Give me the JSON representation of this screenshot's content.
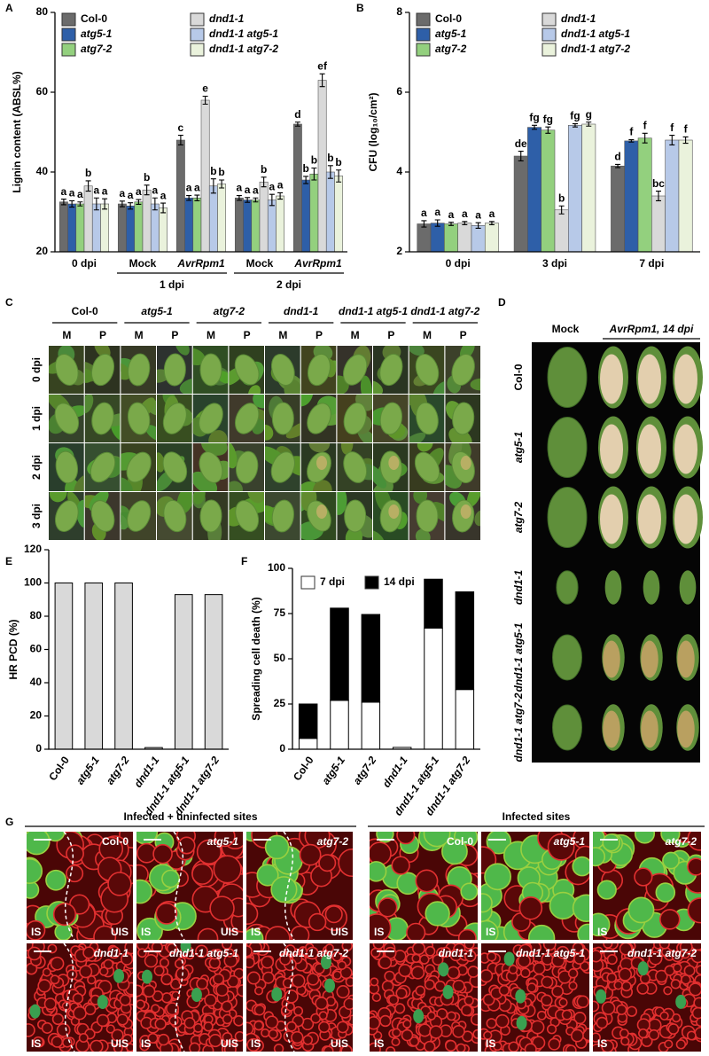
{
  "chart_data": [
    {
      "type": "bar",
      "panel": "A",
      "ylabel": "Lignin content (ABSL%)",
      "categories": [
        "0 dpi",
        "Mock",
        "AvrRpm1",
        "Mock",
        "AvrRpm1"
      ],
      "category_groups": [
        {
          "label": "1 dpi",
          "members": [
            1,
            2
          ]
        },
        {
          "label": "2 dpi",
          "members": [
            3,
            4
          ]
        }
      ],
      "ylim": [
        20,
        80
      ],
      "yticks": [
        20,
        40,
        60,
        80
      ],
      "legend": "top",
      "series": [
        {
          "name": "Col-0",
          "color": "#6b6b6b",
          "values": [
            32.5,
            32,
            48,
            33.5,
            52
          ],
          "errors": [
            0.7,
            0.7,
            1.2,
            0.6,
            0.5
          ],
          "letters": [
            "a",
            "a",
            "c",
            "a",
            "d"
          ]
        },
        {
          "name": "atg5-1",
          "color": "#2e5fa8",
          "values": [
            32,
            31.5,
            33.5,
            33,
            38
          ],
          "errors": [
            0.8,
            0.8,
            0.6,
            0.6,
            0.9
          ],
          "letters": [
            "a",
            "a",
            "a",
            "a",
            "b"
          ]
        },
        {
          "name": "atg7-2",
          "color": "#93d07e",
          "values": [
            32,
            32.5,
            33.5,
            33,
            39.5
          ],
          "errors": [
            0.5,
            0.6,
            0.7,
            0.5,
            1.5
          ],
          "letters": [
            "a",
            "a",
            "a",
            "a",
            "b"
          ]
        },
        {
          "name": "dnd1-1",
          "color": "#d9d9d9",
          "values": [
            36.5,
            35.5,
            58,
            37.5,
            63
          ],
          "errors": [
            1.3,
            1.2,
            1.0,
            1.2,
            1.6
          ],
          "letters": [
            "b",
            "b",
            "e",
            "b",
            "ef"
          ]
        },
        {
          "name": "dnd1-1 atg5-1",
          "color": "#b7c9e8",
          "values": [
            32,
            32,
            36.5,
            33,
            40
          ],
          "errors": [
            1.5,
            1.5,
            1.8,
            1.4,
            1.6
          ],
          "letters": [
            "a",
            "a",
            "b",
            "a",
            "b"
          ]
        },
        {
          "name": "dnd1-1 atg7-2",
          "color": "#eaf2dc",
          "values": [
            32,
            31,
            37,
            34,
            39
          ],
          "errors": [
            1.3,
            1.2,
            1.0,
            0.8,
            1.5
          ],
          "letters": [
            "a",
            "a",
            "b",
            "a",
            "b"
          ]
        }
      ]
    },
    {
      "type": "bar",
      "panel": "B",
      "ylabel": "CFU (log₁₀/cm²)",
      "categories": [
        "0 dpi",
        "3 dpi",
        "7 dpi"
      ],
      "ylim": [
        2,
        8
      ],
      "yticks": [
        2,
        4,
        6,
        8
      ],
      "legend": "top",
      "series": [
        {
          "name": "Col-0",
          "color": "#6b6b6b",
          "values": [
            2.7,
            4.4,
            4.15
          ],
          "errors": [
            0.08,
            0.12,
            0.04
          ],
          "letters": [
            "a",
            "de",
            "d"
          ]
        },
        {
          "name": "atg5-1",
          "color": "#2e5fa8",
          "values": [
            2.72,
            5.12,
            4.78
          ],
          "errors": [
            0.08,
            0.05,
            0.03
          ],
          "letters": [
            "a",
            "fg",
            "f"
          ]
        },
        {
          "name": "atg7-2",
          "color": "#93d07e",
          "values": [
            2.7,
            5.05,
            4.85
          ],
          "errors": [
            0.04,
            0.08,
            0.12
          ],
          "letters": [
            "a",
            "fg",
            "f"
          ]
        },
        {
          "name": "dnd1-1",
          "color": "#d9d9d9",
          "values": [
            2.72,
            3.05,
            3.4
          ],
          "errors": [
            0.04,
            0.1,
            0.12
          ],
          "letters": [
            "a",
            "b",
            "bc"
          ]
        },
        {
          "name": "dnd1-1 atg5-1",
          "color": "#b7c9e8",
          "values": [
            2.66,
            5.17,
            4.8
          ],
          "errors": [
            0.07,
            0.04,
            0.12
          ],
          "letters": [
            "a",
            "fg",
            "f"
          ]
        },
        {
          "name": "dnd1-1 atg7-2",
          "color": "#eaf2dc",
          "values": [
            2.72,
            5.2,
            4.8
          ],
          "errors": [
            0.04,
            0.05,
            0.08
          ],
          "letters": [
            "a",
            "g",
            "f"
          ]
        }
      ]
    },
    {
      "type": "bar",
      "panel": "E",
      "ylabel": "HR PCD (%)",
      "categories": [
        "Col-0",
        "atg5-1",
        "atg7-2",
        "dnd1-1",
        "dnd1-1 atg5-1",
        "dnd1-1 atg7-2"
      ],
      "values": [
        100,
        100,
        100,
        1,
        93,
        93
      ],
      "color": "#d9d9d9",
      "ylim": [
        0,
        120
      ],
      "yticks": [
        0,
        20,
        40,
        60,
        80,
        100,
        120
      ]
    },
    {
      "type": "stacked_bar",
      "panel": "F",
      "ylabel": "Spreading cell death (%)",
      "categories": [
        "Col-0",
        "atg5-1",
        "atg7-2",
        "dnd1-1",
        "dnd1-1 atg5-1",
        "dnd1-1 atg7-2"
      ],
      "ylim": [
        0,
        100
      ],
      "yticks": [
        0,
        25,
        50,
        75,
        100
      ],
      "legend": "top",
      "series": [
        {
          "name": "7 dpi",
          "color": "#ffffff",
          "values": [
            6,
            27,
            26,
            1,
            67,
            33
          ]
        },
        {
          "name": "14 dpi",
          "color": "#000000",
          "values": [
            19,
            51,
            48.5,
            0,
            27,
            54
          ]
        }
      ]
    }
  ],
  "panel_c": {
    "label": "C",
    "genotypes": [
      "Col-0",
      "atg5-1",
      "atg7-2",
      "dnd1-1",
      "dnd1-1 atg5-1",
      "dnd1-1 atg7-2"
    ],
    "treatments": [
      "M",
      "P"
    ],
    "timepoints": [
      "0 dpi",
      "1 dpi",
      "2 dpi",
      "3 dpi"
    ]
  },
  "panel_d": {
    "label": "D",
    "mock": "Mock",
    "treatment": "AvrRpm1, 14 dpi",
    "genotypes": [
      "Col-0",
      "atg5-1",
      "atg7-2",
      "dnd1-1",
      "dnd1-1 atg5-1",
      "dnd1-1 atg7-2"
    ]
  },
  "panel_g": {
    "label": "G",
    "left_title": "Infected + uninfected sites",
    "right_title": "Infected sites",
    "genotypes": [
      "Col-0",
      "atg5-1",
      "atg7-2",
      "dnd1-1",
      "dnd1-1 atg5-1",
      "dnd1-1 atg7-2"
    ],
    "infected": "IS",
    "uninfected": "UIS"
  }
}
